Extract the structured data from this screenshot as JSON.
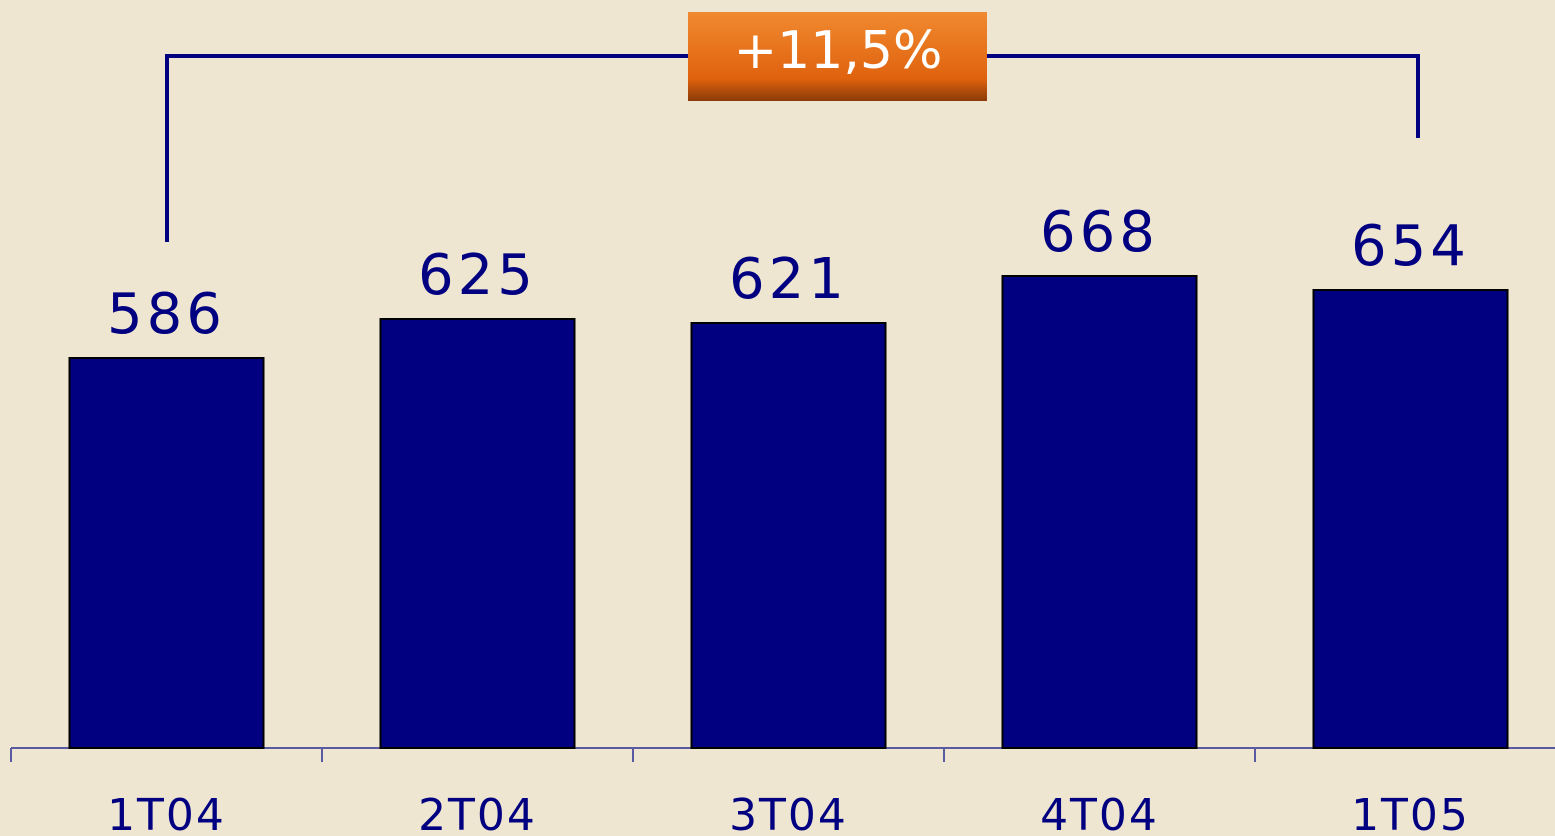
{
  "chart_data": {
    "type": "bar",
    "categories": [
      "1T04",
      "2T04",
      "3T04",
      "4T04",
      "1T05"
    ],
    "values": [
      586,
      625,
      621,
      668,
      654
    ],
    "color": "#000080",
    "ylim": [
      196,
      944
    ],
    "annotation": "+11,5%"
  }
}
